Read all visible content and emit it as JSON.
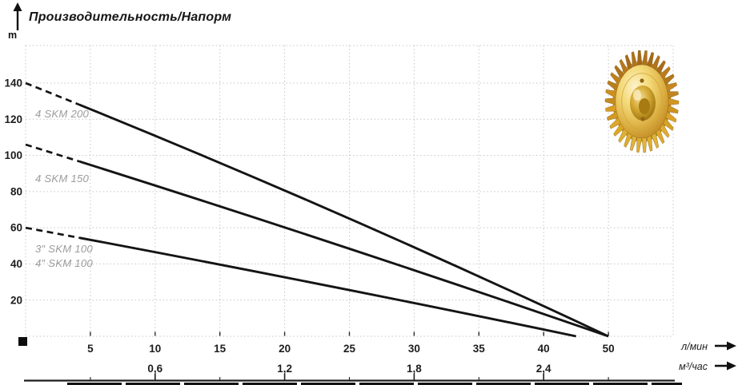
{
  "title": "Производительность/Напорм",
  "chart_data": {
    "type": "line",
    "title": "Производительность/Напорм",
    "y_axis": {
      "unit": "m",
      "ticks": [
        20,
        40,
        60,
        80,
        100,
        120,
        140
      ],
      "ylim": [
        0,
        160
      ]
    },
    "x_axis": {
      "unit": "л/мин",
      "ticks": [
        5,
        10,
        15,
        20,
        25,
        30,
        35,
        40,
        50
      ]
    },
    "x2_axis": {
      "unit": "м³/час",
      "tick_labels": [
        "0,6",
        "1,2",
        "1,8",
        "2,4"
      ],
      "tick_values": [
        0.6,
        1.2,
        1.8,
        2.4
      ]
    },
    "grid": true,
    "legend_position": "inline-left-above-curves",
    "series": [
      {
        "labels": [
          "4 SKM 200"
        ],
        "head_at_zero_flow_m": 140,
        "max_flow_lmin": 50,
        "dashed_below_lmin": 4.2,
        "points_q_lmin_head_m": [
          [
            0,
            140
          ],
          [
            50,
            0
          ]
        ]
      },
      {
        "labels": [
          "4 SKM 150"
        ],
        "head_at_zero_flow_m": 106,
        "max_flow_lmin": 50,
        "dashed_below_lmin": 4.2,
        "points_q_lmin_head_m": [
          [
            0,
            106
          ],
          [
            50,
            0
          ]
        ]
      },
      {
        "labels": [
          "3″ SKM 100",
          "4″ SKM 100"
        ],
        "head_at_zero_flow_m": 60,
        "max_flow_lmin": 45,
        "dashed_below_lmin": 4.2,
        "points_q_lmin_head_m": [
          [
            0,
            60
          ],
          [
            45,
            0
          ]
        ]
      }
    ],
    "colors": {
      "curve": "#141414",
      "grid": "#c9c9c9",
      "curve_label": "#9c9c9c",
      "axis": "#1c1c1c"
    },
    "decoration": "brass pump impeller photo, top right"
  }
}
